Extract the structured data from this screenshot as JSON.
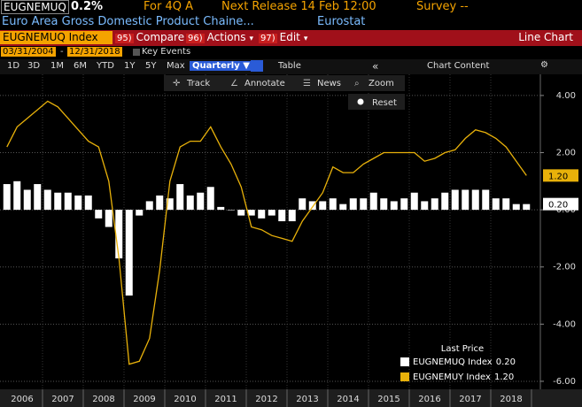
{
  "header": {
    "ticker": "EUGNEMUQ",
    "value": "0.2%",
    "period": "For 4Q A",
    "release": "Next Release 14 Feb 12:00",
    "survey": "Survey --",
    "description": "Euro Area Gross Domestic Product Chaine...",
    "source": "Eurostat"
  },
  "toolbar": {
    "security": "EUGNEMUQ Index",
    "menus": [
      {
        "key": "95)",
        "label": "Compare"
      },
      {
        "key": "96)",
        "label": "Actions"
      },
      {
        "key": "97)",
        "label": "Edit"
      }
    ],
    "title": "Line Chart",
    "ranges": [
      "1D",
      "3D",
      "1M",
      "6M",
      "YTD",
      "1Y",
      "5Y",
      "Max"
    ],
    "frequency": "Quarterly ▼",
    "table": "Table",
    "chart_content": "Chart Content"
  },
  "dates": {
    "start": "03/31/2004",
    "end": "12/31/2018",
    "key_events": "Key Events"
  },
  "chart_tools": {
    "items": [
      "Track",
      "Annotate",
      "News",
      "Zoom"
    ],
    "reset": "Reset"
  },
  "chart_data": {
    "type": "combo",
    "x_labels": [
      2006,
      2007,
      2008,
      2009,
      2010,
      2011,
      2012,
      2013,
      2014,
      2015,
      2016,
      2017,
      2018
    ],
    "ylim": [
      -6.28,
      4.74
    ],
    "yticks": [
      {
        "value": 4,
        "label": "4.00"
      },
      {
        "value": 2,
        "label": "2.00"
      },
      {
        "value": 0,
        "label": "0.00"
      },
      {
        "value": -2,
        "label": "-2.00"
      },
      {
        "value": -4,
        "label": "-4.00"
      },
      {
        "value": -6,
        "label": "-6.00"
      }
    ],
    "grid": true,
    "legend_title": "Last Price",
    "series": [
      {
        "name": "EUGNEMUQ Index",
        "kind": "bar",
        "color": "#ffffff",
        "last_label": "0.20",
        "values": [
          0.9,
          1.0,
          0.7,
          0.9,
          0.7,
          0.6,
          0.6,
          0.5,
          0.5,
          -0.3,
          -0.6,
          -1.7,
          -3.0,
          -0.2,
          0.3,
          0.5,
          0.4,
          0.9,
          0.5,
          0.6,
          0.8,
          0.1,
          0.0,
          -0.2,
          -0.2,
          -0.3,
          -0.2,
          -0.4,
          -0.4,
          0.4,
          0.3,
          0.3,
          0.4,
          0.2,
          0.4,
          0.4,
          0.6,
          0.4,
          0.3,
          0.4,
          0.6,
          0.3,
          0.4,
          0.6,
          0.7,
          0.7,
          0.7,
          0.7,
          0.4,
          0.4,
          0.2,
          0.2
        ]
      },
      {
        "name": "EUGNEMUY Index",
        "kind": "line",
        "color": "#e8b10a",
        "last_label": "1.20",
        "values": [
          2.2,
          2.9,
          3.2,
          3.5,
          3.8,
          3.6,
          3.2,
          2.8,
          2.4,
          2.2,
          1.0,
          -1.7,
          -5.4,
          -5.3,
          -4.5,
          -2.1,
          1.0,
          2.2,
          2.4,
          2.4,
          2.9,
          2.2,
          1.6,
          0.8,
          -0.6,
          -0.7,
          -0.9,
          -1.0,
          -1.1,
          -0.4,
          0.1,
          0.6,
          1.5,
          1.3,
          1.3,
          1.6,
          1.8,
          2.0,
          2.0,
          2.0,
          2.0,
          1.7,
          1.8,
          2.0,
          2.1,
          2.5,
          2.8,
          2.7,
          2.5,
          2.2,
          1.7,
          1.2
        ]
      }
    ]
  }
}
